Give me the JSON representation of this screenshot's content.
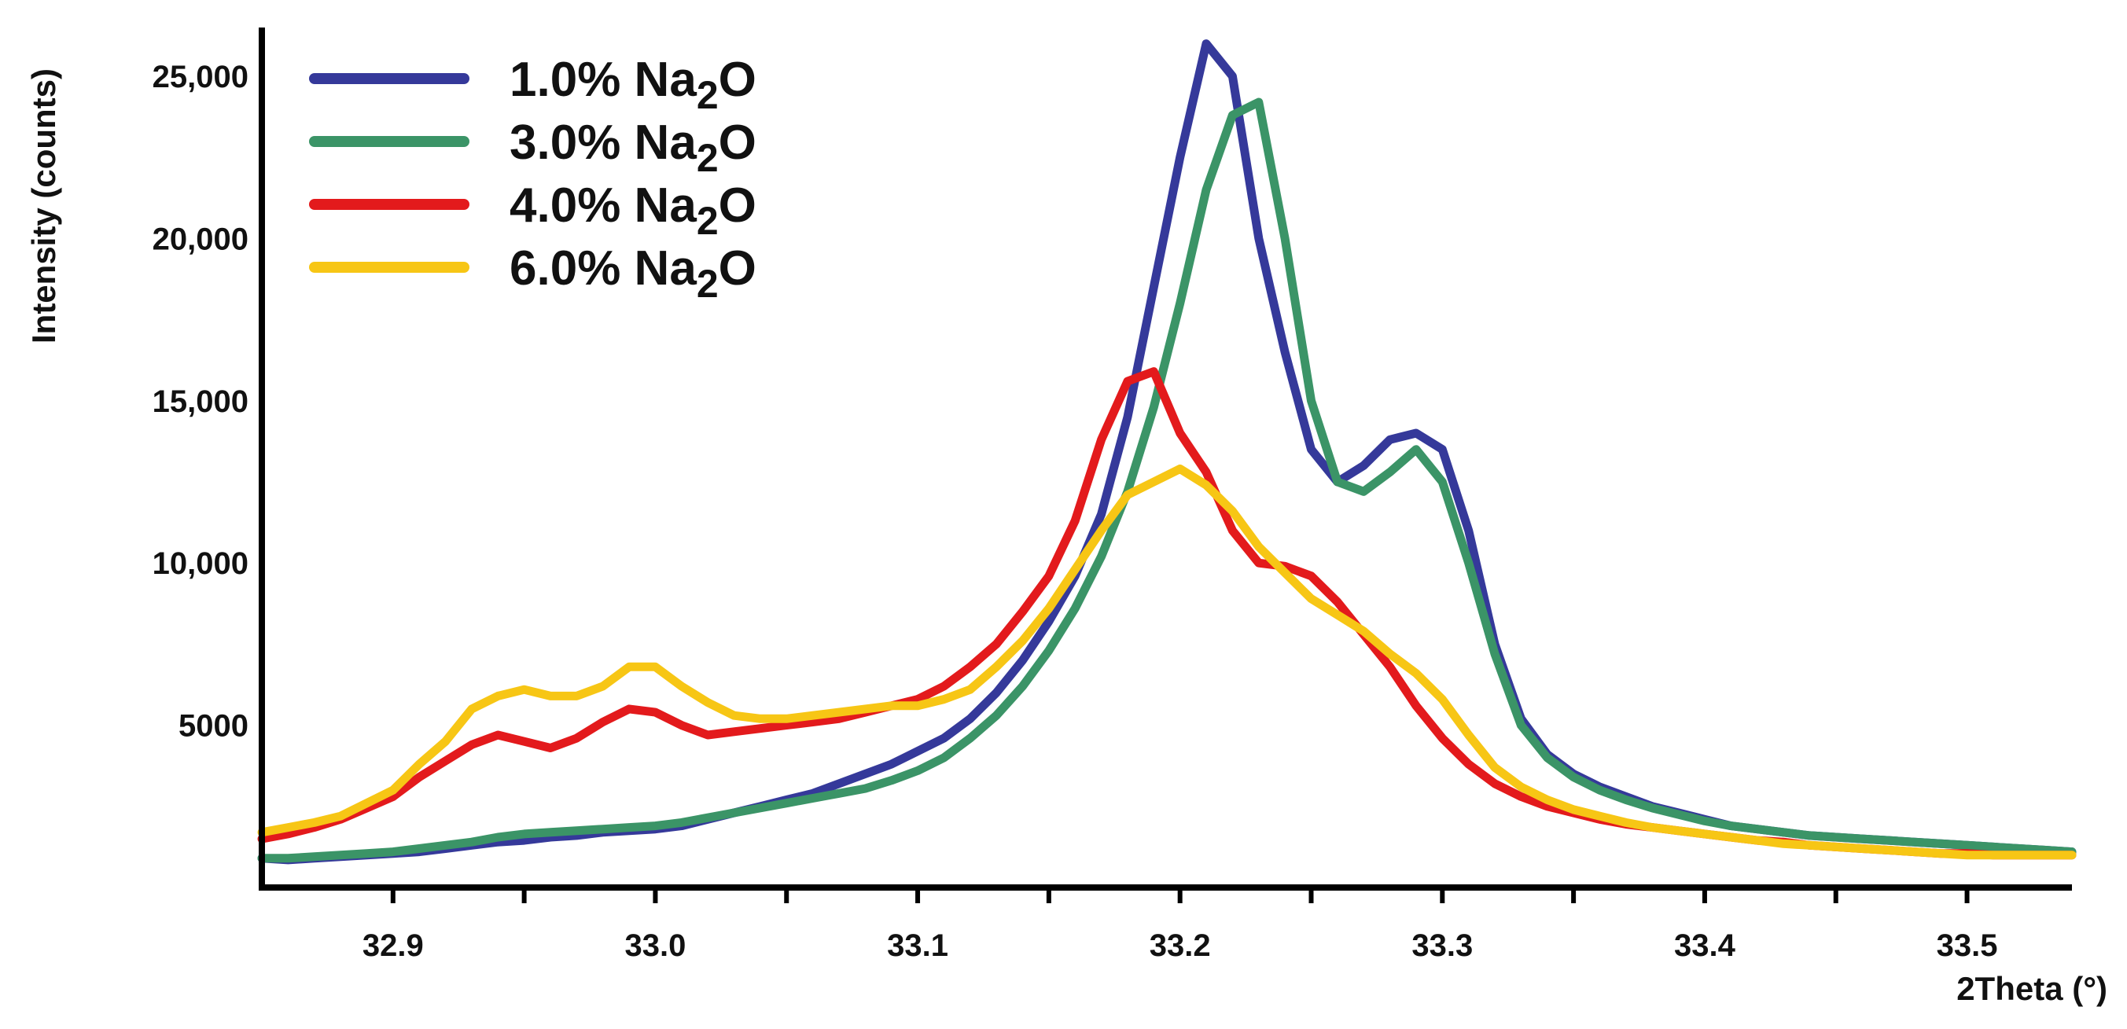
{
  "chart_data": {
    "type": "line",
    "title": "",
    "xlabel": "2Theta (°)",
    "ylabel": "Intensity (counts)",
    "xlim": [
      32.85,
      33.54
    ],
    "ylim": [
      0,
      26500
    ],
    "grid": false,
    "legend_position": "top-left",
    "xticks": [
      32.9,
      33.0,
      33.1,
      33.2,
      33.3,
      33.4,
      33.5
    ],
    "xtick_labels": [
      "32.9",
      "33.0",
      "33.1",
      "33.2",
      "33.3",
      "33.4",
      "33.5"
    ],
    "yticks": [
      5000,
      10000,
      15000,
      20000,
      25000
    ],
    "ytick_labels": [
      "5000",
      "10,000",
      "15,000",
      "20,000",
      "25,000"
    ],
    "x": [
      32.85,
      32.86,
      32.87,
      32.88,
      32.89,
      32.9,
      32.91,
      32.92,
      32.93,
      32.94,
      32.95,
      32.96,
      32.97,
      32.98,
      32.99,
      33.0,
      33.01,
      33.02,
      33.03,
      33.04,
      33.05,
      33.06,
      33.07,
      33.08,
      33.09,
      33.1,
      33.11,
      33.12,
      33.13,
      33.14,
      33.15,
      33.16,
      33.17,
      33.18,
      33.19,
      33.2,
      33.21,
      33.22,
      33.23,
      33.24,
      33.25,
      33.26,
      33.27,
      33.28,
      33.29,
      33.3,
      33.31,
      33.32,
      33.33,
      33.34,
      33.35,
      33.36,
      33.37,
      33.38,
      33.39,
      33.4,
      33.41,
      33.42,
      33.43,
      33.44,
      33.45,
      33.46,
      33.47,
      33.48,
      33.49,
      33.5,
      33.51,
      33.52,
      33.53,
      33.54
    ],
    "series": [
      {
        "name_main": "1.0% Na",
        "name_sub": "2",
        "name_end": "O",
        "color": "#35399a",
        "values": [
          900,
          850,
          900,
          950,
          1000,
          1050,
          1100,
          1200,
          1300,
          1400,
          1450,
          1550,
          1600,
          1700,
          1750,
          1800,
          1900,
          2100,
          2300,
          2500,
          2700,
          2900,
          3200,
          3500,
          3800,
          4200,
          4600,
          5200,
          6000,
          7000,
          8200,
          9600,
          11500,
          14500,
          18500,
          22500,
          26000,
          25000,
          20000,
          16500,
          13500,
          12500,
          13000,
          13800,
          14000,
          13500,
          11000,
          7500,
          5200,
          4100,
          3500,
          3100,
          2800,
          2500,
          2300,
          2100,
          1900,
          1800,
          1700,
          1600,
          1550,
          1500,
          1450,
          1400,
          1350,
          1300,
          1250,
          1200,
          1150,
          1100
        ]
      },
      {
        "name_main": "3.0% Na",
        "name_sub": "2",
        "name_end": "O",
        "color": "#3b9467",
        "values": [
          900,
          900,
          950,
          1000,
          1050,
          1100,
          1200,
          1300,
          1400,
          1550,
          1650,
          1700,
          1750,
          1800,
          1850,
          1900,
          2000,
          2150,
          2300,
          2450,
          2600,
          2750,
          2900,
          3050,
          3300,
          3600,
          4000,
          4600,
          5300,
          6200,
          7300,
          8600,
          10200,
          12200,
          14800,
          18000,
          21500,
          23800,
          24200,
          20000,
          15000,
          12500,
          12200,
          12800,
          13500,
          12500,
          10000,
          7200,
          5000,
          4000,
          3400,
          3000,
          2700,
          2450,
          2250,
          2050,
          1900,
          1800,
          1700,
          1600,
          1550,
          1500,
          1450,
          1400,
          1350,
          1300,
          1250,
          1200,
          1150,
          1100
        ]
      },
      {
        "name_main": "4.0% Na",
        "name_sub": "2",
        "name_end": "O",
        "color": "#e31a1c",
        "values": [
          1500,
          1650,
          1850,
          2100,
          2450,
          2800,
          3400,
          3900,
          4400,
          4700,
          4500,
          4300,
          4600,
          5100,
          5500,
          5400,
          5000,
          4700,
          4800,
          4900,
          5000,
          5100,
          5200,
          5400,
          5600,
          5800,
          6200,
          6800,
          7500,
          8500,
          9600,
          11300,
          13800,
          15600,
          15900,
          14000,
          12800,
          11000,
          10000,
          9900,
          9600,
          8800,
          7800,
          6800,
          5600,
          4600,
          3800,
          3200,
          2800,
          2500,
          2300,
          2100,
          1950,
          1850,
          1750,
          1650,
          1550,
          1450,
          1400,
          1300,
          1250,
          1200,
          1150,
          1100,
          1050,
          1050,
          1000,
          1000,
          1000,
          1000
        ]
      },
      {
        "name_main": "6.0% Na",
        "name_sub": "2",
        "name_end": "O",
        "color": "#f7c615",
        "values": [
          1700,
          1850,
          2000,
          2200,
          2600,
          3000,
          3800,
          4500,
          5500,
          5900,
          6100,
          5900,
          5900,
          6200,
          6800,
          6800,
          6200,
          5700,
          5300,
          5200,
          5200,
          5300,
          5400,
          5500,
          5600,
          5600,
          5800,
          6100,
          6800,
          7600,
          8600,
          9800,
          11000,
          12100,
          12500,
          12900,
          12400,
          11600,
          10500,
          9700,
          8900,
          8400,
          7900,
          7200,
          6600,
          5800,
          4700,
          3700,
          3100,
          2700,
          2400,
          2200,
          2000,
          1850,
          1750,
          1650,
          1550,
          1450,
          1350,
          1300,
          1250,
          1200,
          1150,
          1100,
          1050,
          1000,
          1000,
          1000,
          1000,
          1000
        ]
      }
    ]
  }
}
